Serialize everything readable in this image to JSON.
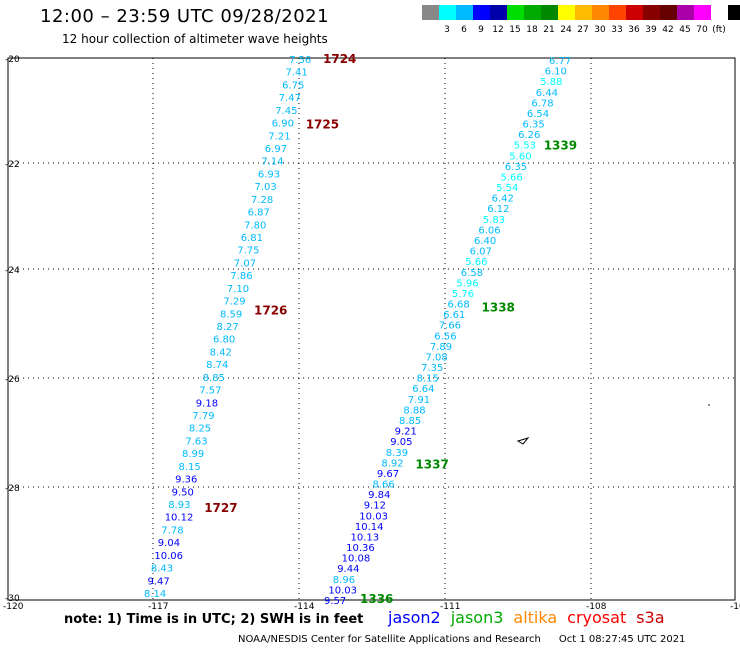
{
  "header": {
    "title": "12:00 – 23:59 UTC 09/28/2021",
    "subtitle": "12 hour collection of altimeter wave heights"
  },
  "colorbar": {
    "colors": [
      "#888888",
      "#00ffff",
      "#00bbff",
      "#0000ff",
      "#0000aa",
      "#00dd00",
      "#00aa00",
      "#008800",
      "#ffff00",
      "#ffbb00",
      "#ff8800",
      "#ff4400",
      "#cc0000",
      "#880000",
      "#660000",
      "#aa00aa",
      "#ff00ff",
      "#ffffff",
      "#000000"
    ],
    "labels": [
      "3",
      "6",
      "9",
      "12",
      "15",
      "18",
      "21",
      "24",
      "27",
      "30",
      "33",
      "36",
      "39",
      "42",
      "45",
      "70",
      "(ft)"
    ]
  },
  "map": {
    "lat_ticks": [
      "-20",
      "-22",
      "-24",
      "-26",
      "-28",
      "-30"
    ],
    "lon_ticks": [
      "-120",
      "-117",
      "-114",
      "-111",
      "-108",
      "-105"
    ]
  },
  "tracks": [
    {
      "id": "left",
      "points": [
        {
          "v": "7.56",
          "c": "#00bbff"
        },
        {
          "v": "7.41",
          "c": "#00bbff"
        },
        {
          "v": "6.75",
          "c": "#00bbff"
        },
        {
          "v": "7.47",
          "c": "#00bbff"
        },
        {
          "v": "7.45",
          "c": "#00bbff"
        },
        {
          "v": "6.90",
          "c": "#00bbff"
        },
        {
          "v": "7.21",
          "c": "#00bbff"
        },
        {
          "v": "6.97",
          "c": "#00bbff"
        },
        {
          "v": "7.14",
          "c": "#00bbff"
        },
        {
          "v": "6.93",
          "c": "#00bbff"
        },
        {
          "v": "7.03",
          "c": "#00bbff"
        },
        {
          "v": "7.28",
          "c": "#00bbff"
        },
        {
          "v": "6.87",
          "c": "#00bbff"
        },
        {
          "v": "7.80",
          "c": "#00bbff"
        },
        {
          "v": "6.81",
          "c": "#00bbff"
        },
        {
          "v": "7.75",
          "c": "#00bbff"
        },
        {
          "v": "7.07",
          "c": "#00bbff"
        },
        {
          "v": "7.86",
          "c": "#00bbff"
        },
        {
          "v": "7.10",
          "c": "#00bbff"
        },
        {
          "v": "7.29",
          "c": "#00bbff"
        },
        {
          "v": "8.59",
          "c": "#00bbff"
        },
        {
          "v": "8.27",
          "c": "#00bbff"
        },
        {
          "v": "6.80",
          "c": "#00bbff"
        },
        {
          "v": "8.42",
          "c": "#00bbff"
        },
        {
          "v": "8.74",
          "c": "#00bbff"
        },
        {
          "v": "8.85",
          "c": "#00bbff"
        },
        {
          "v": "7.57",
          "c": "#00bbff"
        },
        {
          "v": "9.18",
          "c": "#0000ff"
        },
        {
          "v": "7.79",
          "c": "#00bbff"
        },
        {
          "v": "8.25",
          "c": "#00bbff"
        },
        {
          "v": "7.63",
          "c": "#00bbff"
        },
        {
          "v": "8.99",
          "c": "#00bbff"
        },
        {
          "v": "8.15",
          "c": "#00bbff"
        },
        {
          "v": "9.36",
          "c": "#0000ff"
        },
        {
          "v": "9.50",
          "c": "#0000ff"
        },
        {
          "v": "8.93",
          "c": "#00bbff"
        },
        {
          "v": "10.12",
          "c": "#0000ff"
        },
        {
          "v": "7.78",
          "c": "#00bbff"
        },
        {
          "v": "9.04",
          "c": "#0000ff"
        },
        {
          "v": "10.06",
          "c": "#0000ff"
        },
        {
          "v": "8.43",
          "c": "#00bbff"
        },
        {
          "v": "9.47",
          "c": "#0000ff"
        },
        {
          "v": "8.14",
          "c": "#00bbff"
        }
      ],
      "time_labels": [
        {
          "t": "1724",
          "c": "#880000",
          "after": 0
        },
        {
          "t": "1725",
          "c": "#880000",
          "after": 5
        },
        {
          "t": "1726",
          "c": "#880000",
          "after": 20
        },
        {
          "t": "1727",
          "c": "#880000",
          "after": 35
        }
      ]
    },
    {
      "id": "right",
      "points": [
        {
          "v": "6.77",
          "c": "#00bbff"
        },
        {
          "v": "6.10",
          "c": "#00bbff"
        },
        {
          "v": "5.88",
          "c": "#00ffff"
        },
        {
          "v": "6.44",
          "c": "#00bbff"
        },
        {
          "v": "6.78",
          "c": "#00bbff"
        },
        {
          "v": "6.54",
          "c": "#00bbff"
        },
        {
          "v": "6.35",
          "c": "#00bbff"
        },
        {
          "v": "6.26",
          "c": "#00bbff"
        },
        {
          "v": "5.53",
          "c": "#00ffff"
        },
        {
          "v": "5.60",
          "c": "#00ffff"
        },
        {
          "v": "6.35",
          "c": "#00bbff"
        },
        {
          "v": "5.66",
          "c": "#00ffff"
        },
        {
          "v": "5.54",
          "c": "#00ffff"
        },
        {
          "v": "6.42",
          "c": "#00bbff"
        },
        {
          "v": "6.12",
          "c": "#00bbff"
        },
        {
          "v": "5.83",
          "c": "#00ffff"
        },
        {
          "v": "6.06",
          "c": "#00bbff"
        },
        {
          "v": "6.40",
          "c": "#00bbff"
        },
        {
          "v": "6.07",
          "c": "#00bbff"
        },
        {
          "v": "5.66",
          "c": "#00ffff"
        },
        {
          "v": "6.58",
          "c": "#00bbff"
        },
        {
          "v": "5.96",
          "c": "#00ffff"
        },
        {
          "v": "5.76",
          "c": "#00ffff"
        },
        {
          "v": "6.68",
          "c": "#00bbff"
        },
        {
          "v": "6.61",
          "c": "#00bbff"
        },
        {
          "v": "7.66",
          "c": "#00bbff"
        },
        {
          "v": "6.56",
          "c": "#00bbff"
        },
        {
          "v": "7.89",
          "c": "#00bbff"
        },
        {
          "v": "7.08",
          "c": "#00bbff"
        },
        {
          "v": "7.35",
          "c": "#00bbff"
        },
        {
          "v": "8.15",
          "c": "#00bbff"
        },
        {
          "v": "6.64",
          "c": "#00bbff"
        },
        {
          "v": "7.91",
          "c": "#00bbff"
        },
        {
          "v": "8.88",
          "c": "#00bbff"
        },
        {
          "v": "8.85",
          "c": "#00bbff"
        },
        {
          "v": "9.21",
          "c": "#0000ff"
        },
        {
          "v": "9.05",
          "c": "#0000ff"
        },
        {
          "v": "8.39",
          "c": "#00bbff"
        },
        {
          "v": "8.92",
          "c": "#00bbff"
        },
        {
          "v": "9.67",
          "c": "#0000ff"
        },
        {
          "v": "8.66",
          "c": "#00bbff"
        },
        {
          "v": "9.84",
          "c": "#0000ff"
        },
        {
          "v": "9.12",
          "c": "#0000ff"
        },
        {
          "v": "10.03",
          "c": "#0000ff"
        },
        {
          "v": "10.14",
          "c": "#0000ff"
        },
        {
          "v": "10.13",
          "c": "#0000ff"
        },
        {
          "v": "10.36",
          "c": "#0000ff"
        },
        {
          "v": "10.08",
          "c": "#0000ff"
        },
        {
          "v": "9.44",
          "c": "#0000ff"
        },
        {
          "v": "8.96",
          "c": "#00bbff"
        },
        {
          "v": "10.03",
          "c": "#0000ff"
        },
        {
          "v": "9.57",
          "c": "#0000ff"
        }
      ],
      "time_labels": [
        {
          "t": "1339",
          "c": "#008800",
          "after": 8
        },
        {
          "t": "1338",
          "c": "#008800",
          "after": 23
        },
        {
          "t": "1337",
          "c": "#008800",
          "after": 38
        },
        {
          "t": "1336",
          "c": "#008800",
          "after": 51
        }
      ]
    }
  ],
  "note": "note:  1) Time is in UTC; 2) SWH is in feet",
  "legend": [
    {
      "name": "jason2",
      "color": "#0000ff"
    },
    {
      "name": "jason3",
      "color": "#00aa00"
    },
    {
      "name": "altika",
      "color": "#ff8800"
    },
    {
      "name": "cryosat",
      "color": "#ff0000"
    },
    {
      "name": "s3a",
      "color": "#cc0000"
    }
  ],
  "footer": {
    "org": "NOAA/NESDIS Center for Satellite Applications and Research",
    "timestamp": "Oct  1 08:27:45 UTC 2021"
  }
}
